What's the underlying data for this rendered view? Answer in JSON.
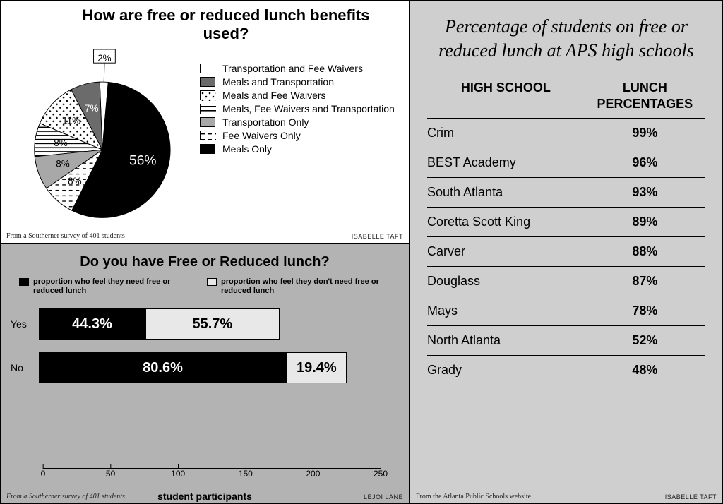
{
  "pie": {
    "title": "How are free or reduced lunch benefits used?",
    "slices": [
      {
        "label": "Transportation and Fee Waivers",
        "value": 2,
        "display": "2%",
        "fill": "#ffffff"
      },
      {
        "label": "Meals and Transportation",
        "value": 7,
        "display": "7%",
        "fill": "#6b6b6b"
      },
      {
        "label": "Meals and Fee Waivers",
        "value": 11,
        "display": "11%",
        "fill": "pattern-dots"
      },
      {
        "label": "Meals, Fee Waivers and Transportation",
        "value": 8,
        "display": "8%",
        "fill": "pattern-hstripe"
      },
      {
        "label": "Transportation Only",
        "value": 8,
        "display": "8%",
        "fill": "#a8a8a8"
      },
      {
        "label": "Fee Waivers Only",
        "value": 8,
        "display": "8%",
        "fill": "pattern-dash"
      },
      {
        "label": "Meals Only",
        "value": 56,
        "display": "56%",
        "fill": "#000000"
      }
    ],
    "start_angle_deg": -85,
    "direction": "ccw",
    "label_color_on_dark": "#ffffff",
    "label_color_on_light": "#000000",
    "credit_left": "From a Southerner survey of 401 students",
    "credit_right": "ISABELLE TAFT"
  },
  "bar": {
    "title": "Do you have Free or Reduced lunch?",
    "legend": {
      "need": {
        "text": "proportion who feel they need free or reduced lunch",
        "color": "#000000",
        "text_color": "#ffffff"
      },
      "no_need": {
        "text": "proportion who feel they don't need free or reduced lunch",
        "color": "#e8e8e8",
        "text_color": "#000000"
      }
    },
    "x_label": "student participants",
    "x_ticks": [
      0,
      50,
      100,
      150,
      200,
      250
    ],
    "x_max": 250,
    "rows": [
      {
        "category": "Yes",
        "total": 176,
        "need_pct": 44.3,
        "no_need_pct": 55.7,
        "need_display": "44.3%",
        "no_need_display": "55.7%"
      },
      {
        "category": "No",
        "total": 225,
        "need_pct": 80.6,
        "no_need_pct": 19.4,
        "need_display": "80.6%",
        "no_need_display": "19.4%"
      }
    ],
    "credit_left": "From a Southerner survey of 401 students",
    "credit_right": "LEJOI LANE"
  },
  "table": {
    "title": "Percentage of students on free or reduced lunch at APS high schools",
    "col_school": "HIGH SCHOOL",
    "col_pct": "LUNCH PERCENTAGES",
    "rows": [
      {
        "school": "Crim",
        "pct": "99%"
      },
      {
        "school": "BEST Academy",
        "pct": "96%"
      },
      {
        "school": "South Atlanta",
        "pct": "93%"
      },
      {
        "school": "Coretta Scott King",
        "pct": "89%"
      },
      {
        "school": "Carver",
        "pct": "88%"
      },
      {
        "school": "Douglass",
        "pct": "87%"
      },
      {
        "school": "Mays",
        "pct": "78%"
      },
      {
        "school": "North Atlanta",
        "pct": "52%"
      },
      {
        "school": "Grady",
        "pct": "48%"
      }
    ],
    "credit_left": "From the Atlanta Public Schools website",
    "credit_right": "ISABELLE TAFT"
  }
}
